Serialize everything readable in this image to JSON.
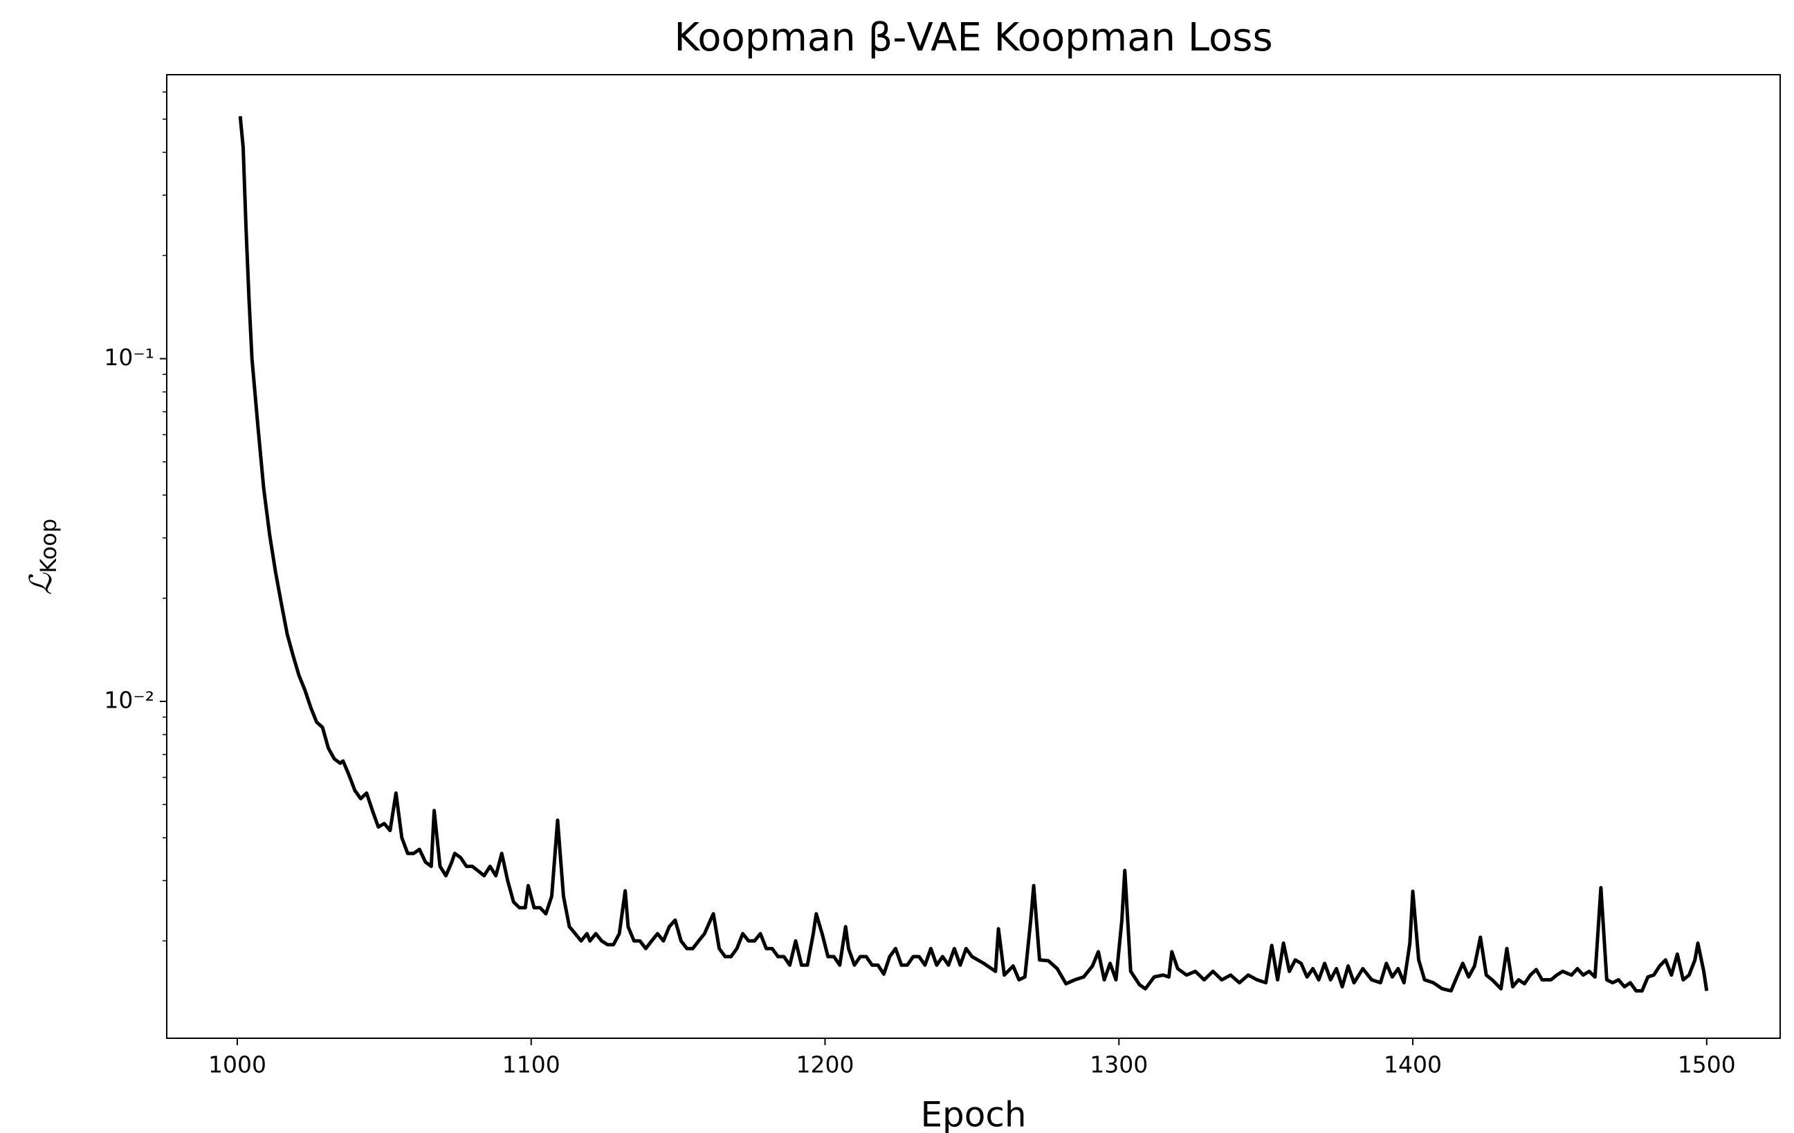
{
  "chart_data": {
    "type": "line",
    "title": "Koopman β-VAE Koopman Loss",
    "xlabel": "Epoch",
    "ylabel": "ℒ",
    "ylabel_subscript": "Koop",
    "color": "#000000",
    "yscale": "log",
    "xlim": [
      976,
      1525
    ],
    "ylim": [
      0.00104,
      0.674
    ],
    "xticks": [
      1000,
      1100,
      1200,
      1300,
      1400,
      1500
    ],
    "yticks": [
      {
        "value": 0.01,
        "label": "10⁻²"
      },
      {
        "value": 0.1,
        "label": "10⁻¹"
      }
    ],
    "yminorticks": [
      0.002,
      0.003,
      0.004,
      0.005,
      0.006,
      0.007,
      0.008,
      0.009,
      0.02,
      0.03,
      0.04,
      0.05,
      0.06,
      0.07,
      0.08,
      0.09,
      0.2,
      0.3,
      0.4,
      0.5,
      0.6
    ],
    "x": [
      1001,
      1002,
      1003,
      1004,
      1005,
      1007,
      1009,
      1011,
      1013,
      1015,
      1017,
      1019,
      1021,
      1023,
      1025,
      1027,
      1029,
      1031,
      1033,
      1035,
      1036,
      1038,
      1040,
      1042,
      1044,
      1046,
      1048,
      1050,
      1052,
      1054,
      1056,
      1058,
      1060,
      1062,
      1064,
      1066,
      1067,
      1069,
      1071,
      1073,
      1074,
      1076,
      1078,
      1080,
      1082,
      1084,
      1086,
      1088,
      1090,
      1092,
      1094,
      1096,
      1098,
      1099,
      1101,
      1103,
      1105,
      1107,
      1109,
      1111,
      1113,
      1115,
      1117,
      1119,
      1120,
      1122,
      1124,
      1126,
      1128,
      1130,
      1132,
      1133,
      1135,
      1137,
      1139,
      1141,
      1143,
      1145,
      1147,
      1149,
      1151,
      1153,
      1155,
      1157,
      1159,
      1161,
      1162,
      1164,
      1166,
      1168,
      1170,
      1172,
      1174,
      1176,
      1178,
      1180,
      1182,
      1184,
      1186,
      1188,
      1190,
      1192,
      1194,
      1196,
      1197,
      1199,
      1201,
      1203,
      1205,
      1207,
      1208,
      1210,
      1212,
      1214,
      1216,
      1218,
      1220,
      1222,
      1224,
      1226,
      1228,
      1230,
      1232,
      1234,
      1236,
      1238,
      1240,
      1242,
      1244,
      1246,
      1248,
      1250,
      1254,
      1258,
      1259,
      1261,
      1264,
      1266,
      1268,
      1270,
      1271,
      1273,
      1276,
      1279,
      1282,
      1285,
      1288,
      1291,
      1293,
      1295,
      1297,
      1299,
      1301,
      1302,
      1304,
      1307,
      1309,
      1312,
      1315,
      1317,
      1318,
      1320,
      1323,
      1326,
      1329,
      1332,
      1335,
      1338,
      1341,
      1344,
      1347,
      1350,
      1352,
      1354,
      1356,
      1358,
      1360,
      1362,
      1364,
      1366,
      1368,
      1370,
      1372,
      1374,
      1376,
      1378,
      1380,
      1383,
      1386,
      1389,
      1391,
      1393,
      1395,
      1397,
      1399,
      1400,
      1402,
      1404,
      1407,
      1410,
      1413,
      1415,
      1417,
      1419,
      1421,
      1423,
      1425,
      1427,
      1430,
      1432,
      1434,
      1436,
      1438,
      1440,
      1442,
      1444,
      1447,
      1449,
      1451,
      1454,
      1456,
      1458,
      1460,
      1462,
      1464,
      1466,
      1468,
      1470,
      1472,
      1474,
      1476,
      1478,
      1480,
      1482,
      1484,
      1486,
      1488,
      1490,
      1492,
      1494,
      1496,
      1497,
      1499,
      1500
    ],
    "values": [
      0.51,
      0.414,
      0.238,
      0.149,
      0.1,
      0.0638,
      0.0418,
      0.0307,
      0.0239,
      0.0193,
      0.0157,
      0.0136,
      0.0119,
      0.0108,
      0.0096,
      0.0087,
      0.0084,
      0.0073,
      0.0068,
      0.0066,
      0.0067,
      0.0061,
      0.0055,
      0.0052,
      0.0054,
      0.0048,
      0.0043,
      0.0044,
      0.0042,
      0.0054,
      0.004,
      0.0036,
      0.0036,
      0.0037,
      0.0034,
      0.0033,
      0.0048,
      0.0033,
      0.0031,
      0.0034,
      0.0036,
      0.0035,
      0.0033,
      0.0033,
      0.0032,
      0.0031,
      0.0033,
      0.0031,
      0.0036,
      0.003,
      0.0026,
      0.0025,
      0.0025,
      0.0029,
      0.0025,
      0.0025,
      0.0024,
      0.0027,
      0.0045,
      0.0027,
      0.0022,
      0.0021,
      0.002,
      0.0021,
      0.002,
      0.0021,
      0.002,
      0.00195,
      0.00195,
      0.0021,
      0.0028,
      0.0022,
      0.002,
      0.002,
      0.0019,
      0.002,
      0.0021,
      0.002,
      0.0022,
      0.0023,
      0.002,
      0.0019,
      0.0019,
      0.002,
      0.0021,
      0.0023,
      0.0024,
      0.0019,
      0.0018,
      0.0018,
      0.0019,
      0.0021,
      0.002,
      0.002,
      0.0021,
      0.0019,
      0.0019,
      0.0018,
      0.0018,
      0.0017,
      0.002,
      0.0017,
      0.0017,
      0.0021,
      0.0024,
      0.0021,
      0.0018,
      0.0018,
      0.0017,
      0.0022,
      0.0019,
      0.0017,
      0.0018,
      0.0018,
      0.0017,
      0.0017,
      0.0016,
      0.0018,
      0.0019,
      0.0017,
      0.0017,
      0.0018,
      0.0018,
      0.0017,
      0.0019,
      0.0017,
      0.0018,
      0.0017,
      0.0019,
      0.0017,
      0.0019,
      0.0018,
      0.00172,
      0.00163,
      0.00217,
      0.00159,
      0.00169,
      0.00154,
      0.00157,
      0.0023,
      0.0029,
      0.00176,
      0.00175,
      0.00166,
      0.0015,
      0.00154,
      0.00157,
      0.00169,
      0.00186,
      0.00154,
      0.00172,
      0.00154,
      0.0023,
      0.00321,
      0.00163,
      0.00149,
      0.00145,
      0.00157,
      0.00159,
      0.00157,
      0.00186,
      0.00166,
      0.00159,
      0.00163,
      0.00154,
      0.00163,
      0.00154,
      0.00159,
      0.00151,
      0.00159,
      0.00154,
      0.00151,
      0.00194,
      0.00154,
      0.00197,
      0.00163,
      0.00176,
      0.00172,
      0.00157,
      0.00166,
      0.00154,
      0.00172,
      0.00154,
      0.00166,
      0.00147,
      0.00169,
      0.00151,
      0.00166,
      0.00154,
      0.00151,
      0.00172,
      0.00157,
      0.00166,
      0.00151,
      0.00197,
      0.00279,
      0.00176,
      0.00154,
      0.00151,
      0.00145,
      0.00143,
      0.00157,
      0.00172,
      0.00157,
      0.00169,
      0.00205,
      0.00159,
      0.00154,
      0.00145,
      0.0019,
      0.00147,
      0.00154,
      0.0015,
      0.00159,
      0.00165,
      0.00154,
      0.00154,
      0.00159,
      0.00163,
      0.00159,
      0.00166,
      0.00159,
      0.00163,
      0.00157,
      0.00286,
      0.00154,
      0.00151,
      0.00154,
      0.00147,
      0.00151,
      0.00143,
      0.00143,
      0.00157,
      0.00159,
      0.00169,
      0.00176,
      0.00159,
      0.00183,
      0.00154,
      0.00159,
      0.00176,
      0.00197,
      0.00163,
      0.00143
    ]
  }
}
